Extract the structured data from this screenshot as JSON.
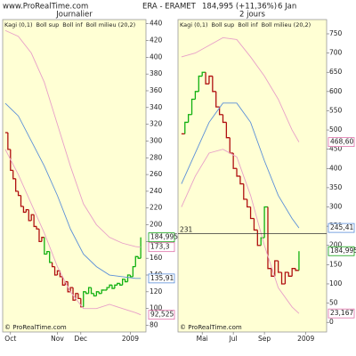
{
  "header": {
    "site": "www.ProRealTime.com",
    "symbol": "ERA - ERAMET",
    "quote": "184,995 (+11,36%)",
    "date": "6 Jan"
  },
  "chart_data": [
    {
      "type": "kagi",
      "title": "Journalier",
      "source": "© ProRealTime.com",
      "xlim": [
        -1,
        54
      ],
      "ylim": [
        72,
        445
      ],
      "xticks": [
        {
          "value": 2,
          "label": "Oct"
        },
        {
          "value": 20,
          "label": "Nov"
        },
        {
          "value": 29,
          "label": "Dec"
        },
        {
          "value": 48,
          "label": "2009"
        }
      ],
      "yticks": [
        80,
        100,
        120,
        140,
        160,
        180,
        200,
        220,
        240,
        260,
        280,
        300,
        320,
        340,
        360,
        380,
        400,
        420,
        440
      ],
      "series": [
        {
          "name": "Kagi (0,1)",
          "color": "#7f8fa8",
          "style": "kagi",
          "x": [
            0,
            1,
            2,
            3,
            4,
            5,
            6,
            7,
            8,
            9,
            10,
            11,
            12,
            13,
            14,
            15,
            16,
            17,
            18,
            19,
            20,
            21,
            22,
            23,
            24,
            25,
            26,
            27,
            28,
            29,
            30,
            31,
            32,
            33,
            34,
            35,
            36,
            37,
            38,
            39,
            40,
            41,
            42,
            43,
            44,
            45,
            46,
            47,
            48,
            49,
            50,
            51,
            52
          ],
          "values": [
            310,
            290,
            265,
            255,
            240,
            235,
            222,
            215,
            218,
            205,
            212,
            198,
            195,
            180,
            185,
            165,
            168,
            155,
            150,
            140,
            145,
            138,
            128,
            132,
            120,
            125,
            110,
            118,
            112,
            102,
            120,
            118,
            125,
            118,
            115,
            120,
            118,
            122,
            122,
            125,
            128,
            124,
            128,
            130,
            128,
            135,
            132,
            140,
            138,
            150,
            162,
            160,
            184.995
          ],
          "colors": [
            "#b01010",
            "#b01010",
            "#b01010",
            "#b01010",
            "#b01010",
            "#b01010",
            "#b01010",
            "#b01010",
            "#b01010",
            "#b01010",
            "#b01010",
            "#b01010",
            "#b01010",
            "#b01010",
            "#b01010",
            "#10b010",
            "#10b010",
            "#10b010",
            "#b01010",
            "#b01010",
            "#b01010",
            "#b01010",
            "#b01010",
            "#b01010",
            "#b01010",
            "#b01010",
            "#b01010",
            "#b01010",
            "#b01010",
            "#b01010",
            "#10b010",
            "#10b010",
            "#10b010",
            "#10b010",
            "#10b010",
            "#10b010",
            "#10b010",
            "#10b010",
            "#10b010",
            "#10b010",
            "#10b010",
            "#10b010",
            "#10b010",
            "#10b010",
            "#10b010",
            "#10b010",
            "#10b010",
            "#10b010",
            "#10b010",
            "#10b010",
            "#10b010",
            "#10b010",
            "#10b010"
          ]
        },
        {
          "name": "Boll sup",
          "color": "#e8a0c8",
          "x": [
            0,
            5,
            10,
            15,
            20,
            25,
            30,
            35,
            40,
            45,
            50,
            52
          ],
          "values": [
            432,
            425,
            405,
            370,
            320,
            270,
            225,
            200,
            185,
            178,
            174,
            173.3
          ]
        },
        {
          "name": "Boll inf",
          "color": "#e8a0c8",
          "x": [
            0,
            5,
            10,
            15,
            20,
            25,
            30,
            35,
            40,
            45,
            50,
            52
          ],
          "values": [
            290,
            260,
            225,
            190,
            150,
            120,
            100,
            100,
            105,
            100,
            95,
            92.525
          ]
        },
        {
          "name": "Boll milieu (20,2)",
          "color": "#5b8fd8",
          "x": [
            0,
            5,
            10,
            15,
            20,
            25,
            30,
            35,
            40,
            45,
            50,
            52
          ],
          "values": [
            345,
            330,
            300,
            270,
            235,
            195,
            165,
            150,
            140,
            138,
            136,
            135.91
          ]
        }
      ],
      "price_labels": [
        {
          "value": 184.995,
          "label": "184,995",
          "color": "#10a010"
        },
        {
          "value": 173.3,
          "label": "173,3",
          "color": "#e070a8"
        },
        {
          "value": 135.91,
          "label": "135,91",
          "color": "#5b8fd8"
        },
        {
          "value": 92.525,
          "label": "92,525",
          "color": "#e070a8"
        }
      ]
    },
    {
      "type": "kagi",
      "title": "2 jours",
      "source": "© ProRealTime.com",
      "xlim": [
        -1,
        42
      ],
      "ylim": [
        -25,
        787
      ],
      "xticks": [
        {
          "value": 6,
          "label": "Mai"
        },
        {
          "value": 15,
          "label": "Jul"
        },
        {
          "value": 24,
          "label": "Sep"
        },
        {
          "value": 36,
          "label": "2009"
        }
      ],
      "yticks": [
        0,
        50,
        100,
        150,
        200,
        250,
        300,
        350,
        400,
        450,
        500,
        550,
        600,
        650,
        700,
        750
      ],
      "level": {
        "value": 231,
        "label": "231"
      },
      "series": [
        {
          "name": "Kagi (0,1)",
          "color": "#7f8fa8",
          "style": "kagi",
          "x": [
            0,
            1,
            2,
            3,
            4,
            5,
            6,
            7,
            8,
            9,
            10,
            11,
            12,
            13,
            14,
            15,
            16,
            17,
            18,
            19,
            20,
            21,
            22,
            23,
            24,
            25,
            26,
            27,
            28,
            29,
            30,
            31,
            32,
            33,
            34
          ],
          "values": [
            490,
            520,
            540,
            580,
            600,
            640,
            650,
            620,
            640,
            600,
            560,
            540,
            520,
            480,
            440,
            400,
            380,
            360,
            320,
            300,
            270,
            240,
            200,
            220,
            300,
            140,
            120,
            160,
            130,
            100,
            130,
            120,
            140,
            135,
            184.995
          ],
          "colors": [
            "#b01010",
            "#10b010",
            "#10b010",
            "#10b010",
            "#10b010",
            "#10b010",
            "#10b010",
            "#b01010",
            "#b01010",
            "#b01010",
            "#b01010",
            "#b01010",
            "#b01010",
            "#b01010",
            "#b01010",
            "#b01010",
            "#b01010",
            "#b01010",
            "#b01010",
            "#b01010",
            "#b01010",
            "#b01010",
            "#b01010",
            "#10b010",
            "#10b010",
            "#b01010",
            "#b01010",
            "#b01010",
            "#b01010",
            "#b01010",
            "#b01010",
            "#b01010",
            "#b01010",
            "#b01010",
            "#10b010"
          ]
        },
        {
          "name": "Boll sup",
          "color": "#e8a0c8",
          "x": [
            0,
            4,
            8,
            12,
            16,
            20,
            24,
            28,
            32,
            34
          ],
          "values": [
            690,
            700,
            720,
            740,
            735,
            690,
            640,
            580,
            500,
            468.6
          ]
        },
        {
          "name": "Boll inf",
          "color": "#e8a0c8",
          "x": [
            0,
            4,
            8,
            12,
            16,
            20,
            24,
            28,
            32,
            34
          ],
          "values": [
            300,
            380,
            440,
            450,
            430,
            330,
            200,
            90,
            40,
            23.167
          ]
        },
        {
          "name": "Boll milieu (20,2)",
          "color": "#5b8fd8",
          "x": [
            0,
            4,
            8,
            12,
            16,
            20,
            24,
            28,
            32,
            34
          ],
          "values": [
            360,
            440,
            520,
            570,
            570,
            520,
            420,
            330,
            270,
            245.41
          ]
        }
      ],
      "price_labels": [
        {
          "value": 468.6,
          "label": "468,60",
          "color": "#e070a8"
        },
        {
          "value": 245.41,
          "label": "245,41",
          "color": "#5b8fd8"
        },
        {
          "value": 184.995,
          "label": "184,995",
          "color": "#10a010"
        },
        {
          "value": 23.167,
          "label": "23,167",
          "color": "#e070a8"
        }
      ]
    }
  ]
}
